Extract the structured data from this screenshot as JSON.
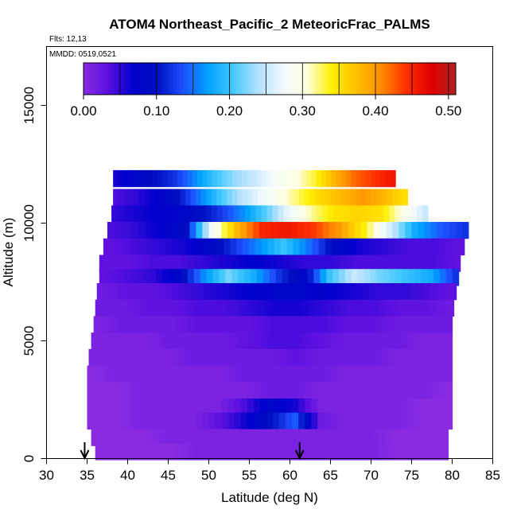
{
  "chart_data": {
    "type": "heatmap",
    "title": "ATOM4 Northeast_Pacific_2 MeteoricFrac_PALMS",
    "subtitle_flights": "Flts: 12,13",
    "subtitle_dates": "MMDD: 0519,0521",
    "xlabel": "Latitude (deg N)",
    "ylabel": "Altitude (m)",
    "xlim": [
      30,
      85
    ],
    "ylim": [
      0,
      17500
    ],
    "x_ticks": [
      "30",
      "35",
      "40",
      "45",
      "50",
      "55",
      "60",
      "65",
      "70",
      "75",
      "80",
      "85"
    ],
    "y_ticks": [
      "0",
      "5000",
      "10000",
      "15000"
    ],
    "colorbar": {
      "range": [
        0,
        0.51
      ],
      "tick_labels": [
        "0.00",
        "0.10",
        "0.20",
        "0.30",
        "0.40",
        "0.50"
      ],
      "colors": [
        "#8a2be2",
        "#5a10e0",
        "#0000cd",
        "#0010c0",
        "#1e50ff",
        "#00a0ff",
        "#40c8ff",
        "#b0e0ff",
        "#f0f8ff",
        "#ffffe0",
        "#fff000",
        "#ffc000",
        "#ff8c00",
        "#ff3000",
        "#e00000",
        "#b22222"
      ]
    },
    "layers": [
      {
        "alt": 11900,
        "x_start": 38.2,
        "x_end": 73.0,
        "values": [
          0.06,
          0.08,
          0.1,
          0.12,
          0.16,
          0.2,
          0.23,
          0.25,
          0.28,
          0.3,
          0.33,
          0.38,
          0.42,
          0.44,
          0.46
        ]
      },
      {
        "alt": 11100,
        "x_start": 38.2,
        "x_end": 74.5,
        "values": [
          0.04,
          0.05,
          0.07,
          0.1,
          0.15,
          0.2,
          0.24,
          0.27,
          0.3,
          0.33,
          0.36,
          0.38,
          0.4,
          0.38,
          0.35
        ]
      },
      {
        "alt": 10400,
        "x_start": 38.0,
        "x_end": 77.0,
        "values": [
          0.05,
          0.06,
          0.07,
          0.08,
          0.1,
          0.13,
          0.17,
          0.22,
          0.28,
          0.32,
          0.35,
          0.36,
          0.35,
          0.3,
          0.25
        ]
      },
      {
        "alt": 9700,
        "x_start": 37.5,
        "x_end": 82.0,
        "values": [
          0.04,
          0.05,
          0.07,
          0.1,
          0.28,
          0.38,
          0.45,
          0.46,
          0.44,
          0.4,
          0.34,
          0.26,
          0.18,
          0.14,
          0.12
        ]
      },
      {
        "alt": 9000,
        "x_start": 37.0,
        "x_end": 81.5,
        "values": [
          0.03,
          0.04,
          0.05,
          0.06,
          0.08,
          0.12,
          0.16,
          0.2,
          0.15,
          0.09,
          0.06,
          0.05,
          0.04,
          0.04,
          0.03
        ]
      },
      {
        "alt": 8300,
        "x_start": 36.5,
        "x_end": 81.0,
        "values": [
          0.03,
          0.03,
          0.04,
          0.04,
          0.05,
          0.06,
          0.07,
          0.06,
          0.05,
          0.05,
          0.04,
          0.04,
          0.04,
          0.04,
          0.03
        ]
      },
      {
        "alt": 7700,
        "x_start": 36.5,
        "x_end": 80.8,
        "values": [
          0.03,
          0.04,
          0.05,
          0.08,
          0.16,
          0.22,
          0.18,
          0.12,
          0.08,
          0.2,
          0.25,
          0.22,
          0.2,
          0.18,
          0.12
        ]
      },
      {
        "alt": 7100,
        "x_start": 36.2,
        "x_end": 80.5,
        "values": [
          0.02,
          0.03,
          0.03,
          0.04,
          0.05,
          0.06,
          0.07,
          0.08,
          0.08,
          0.07,
          0.06,
          0.05,
          0.05,
          0.04,
          0.03
        ]
      },
      {
        "alt": 6400,
        "x_start": 36.0,
        "x_end": 80.2,
        "values": [
          0.02,
          0.02,
          0.03,
          0.03,
          0.04,
          0.04,
          0.05,
          0.06,
          0.06,
          0.05,
          0.04,
          0.04,
          0.03,
          0.03,
          0.02
        ]
      },
      {
        "alt": 5700,
        "x_start": 35.8,
        "x_end": 80.0,
        "values": [
          0.01,
          0.02,
          0.02,
          0.02,
          0.03,
          0.03,
          0.03,
          0.04,
          0.04,
          0.04,
          0.03,
          0.03,
          0.02,
          0.02,
          0.02
        ]
      },
      {
        "alt": 5000,
        "x_start": 35.5,
        "x_end": 80.0,
        "values": [
          0.01,
          0.01,
          0.01,
          0.02,
          0.02,
          0.02,
          0.03,
          0.04,
          0.04,
          0.03,
          0.02,
          0.02,
          0.02,
          0.01,
          0.01
        ]
      },
      {
        "alt": 4300,
        "x_start": 35.2,
        "x_end": 80.0,
        "values": [
          0.01,
          0.01,
          0.01,
          0.01,
          0.02,
          0.02,
          0.02,
          0.02,
          0.03,
          0.02,
          0.02,
          0.02,
          0.01,
          0.01,
          0.01
        ]
      },
      {
        "alt": 3600,
        "x_start": 35.0,
        "x_end": 80.0,
        "values": [
          0.0,
          0.01,
          0.01,
          0.01,
          0.01,
          0.01,
          0.02,
          0.02,
          0.02,
          0.02,
          0.01,
          0.01,
          0.01,
          0.01,
          0.01
        ]
      },
      {
        "alt": 2900,
        "x_start": 35.0,
        "x_end": 80.0,
        "values": [
          0.0,
          0.0,
          0.01,
          0.01,
          0.01,
          0.01,
          0.01,
          0.02,
          0.02,
          0.01,
          0.01,
          0.01,
          0.01,
          0.01,
          0.0
        ]
      },
      {
        "alt": 2200,
        "x_start": 35.0,
        "x_end": 80.0,
        "values": [
          0.0,
          0.0,
          0.01,
          0.01,
          0.01,
          0.01,
          0.04,
          0.08,
          0.06,
          0.01,
          0.01,
          0.01,
          0.01,
          0.0,
          0.0
        ]
      },
      {
        "alt": 1600,
        "x_start": 35.0,
        "x_end": 80.0,
        "values": [
          0.0,
          0.0,
          0.01,
          0.01,
          0.01,
          0.03,
          0.06,
          0.1,
          0.14,
          0.02,
          0.01,
          0.01,
          0.01,
          0.0,
          0.0
        ]
      },
      {
        "alt": 900,
        "x_start": 35.5,
        "x_end": 79.5,
        "values": [
          0.0,
          0.0,
          0.0,
          0.01,
          0.01,
          0.01,
          0.01,
          0.01,
          0.01,
          0.01,
          0.01,
          0.01,
          0.0,
          0.0,
          0.0
        ]
      },
      {
        "alt": 300,
        "x_start": 36.0,
        "x_end": 79.5,
        "values": [
          0.0,
          0.0,
          0.0,
          0.0,
          0.01,
          0.01,
          0.01,
          0.01,
          0.01,
          0.01,
          0.01,
          0.01,
          0.0,
          0.0,
          0.0
        ]
      }
    ],
    "arrows_lat": [
      34.7,
      61.2
    ]
  }
}
